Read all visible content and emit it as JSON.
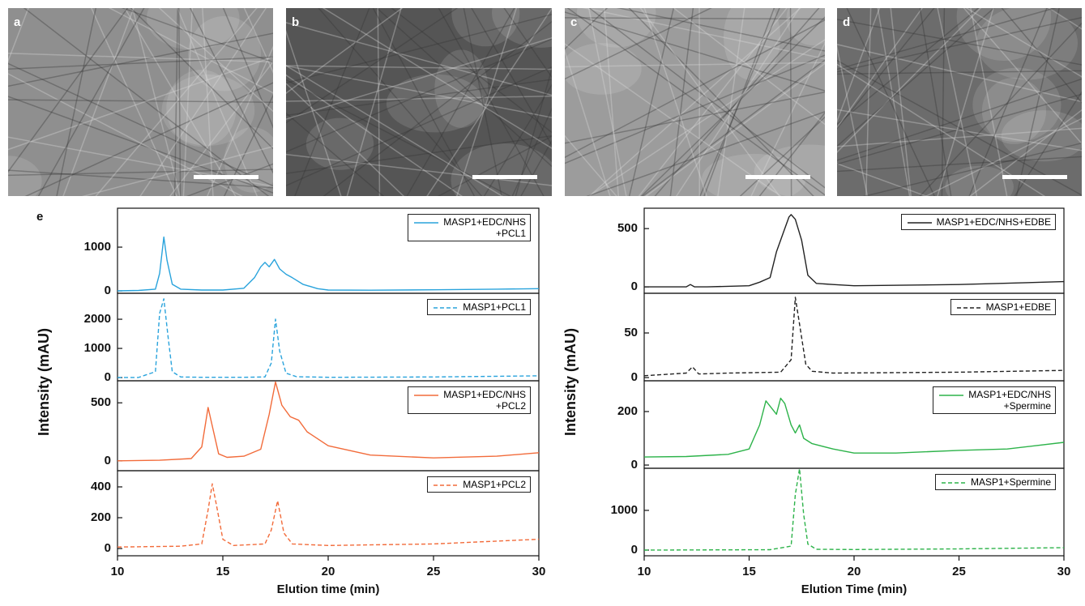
{
  "images": [
    {
      "label": "a"
    },
    {
      "label": "b"
    },
    {
      "label": "c"
    },
    {
      "label": "d"
    }
  ],
  "panel_label": "e",
  "chart_data": [
    {
      "type": "line",
      "ylabel": "Intensity (mAU)",
      "xlim": [
        10,
        30
      ],
      "ylim": [
        -55,
        1890
      ],
      "yticks": [
        0,
        1000
      ],
      "legend": "upper right",
      "series": [
        {
          "name": "MASP1+EDC/NHS\n+PCL1",
          "color": "#29a3dc",
          "dashed": false,
          "x": [
            10,
            11,
            11.8,
            12.0,
            12.2,
            12.35,
            12.6,
            13,
            14,
            15,
            16,
            16.5,
            16.8,
            17.0,
            17.2,
            17.45,
            17.7,
            18,
            18.3,
            18.8,
            19.5,
            20,
            22,
            25,
            28,
            30
          ],
          "values": [
            0,
            10,
            40,
            400,
            1230,
            700,
            150,
            40,
            20,
            20,
            60,
            300,
            550,
            650,
            550,
            720,
            500,
            380,
            300,
            150,
            50,
            20,
            15,
            25,
            40,
            50
          ]
        }
      ]
    },
    {
      "type": "line",
      "xlim": [
        10,
        30
      ],
      "ylim": [
        -110,
        2890
      ],
      "yticks": [
        0,
        1000,
        2000
      ],
      "legend": "upper right",
      "series": [
        {
          "name": "MASP1+PCL1",
          "color": "#29a3dc",
          "dashed": true,
          "x": [
            10,
            11,
            11.8,
            12.0,
            12.2,
            12.4,
            12.6,
            13,
            14,
            16,
            17,
            17.3,
            17.5,
            17.7,
            18,
            18.5,
            20,
            25,
            30
          ],
          "values": [
            0,
            5,
            200,
            2200,
            2700,
            1400,
            200,
            20,
            10,
            10,
            20,
            500,
            2000,
            900,
            150,
            30,
            10,
            20,
            60
          ]
        }
      ]
    },
    {
      "type": "line",
      "xlim": [
        10,
        30
      ],
      "ylim": [
        -85,
        690
      ],
      "yticks": [
        0,
        500
      ],
      "legend": "upper right",
      "series": [
        {
          "name": "MASP1+EDC/NHS\n+PCL2",
          "color": "#f26b3a",
          "dashed": false,
          "x": [
            10,
            12,
            13.5,
            14.0,
            14.3,
            14.5,
            14.8,
            15.2,
            16,
            16.8,
            17.2,
            17.5,
            17.8,
            18.2,
            18.6,
            19,
            20,
            22,
            25,
            28,
            30
          ],
          "values": [
            0,
            5,
            20,
            120,
            460,
            300,
            60,
            30,
            40,
            100,
            400,
            680,
            480,
            380,
            350,
            250,
            130,
            50,
            25,
            40,
            70
          ]
        }
      ]
    },
    {
      "type": "line",
      "xlabel": "Elution time (min)",
      "xlim": [
        10,
        30
      ],
      "xticks": [
        10,
        15,
        20,
        25,
        30
      ],
      "ylim": [
        -47,
        505
      ],
      "yticks": [
        0,
        200,
        400
      ],
      "legend": "upper right",
      "series": [
        {
          "name": "MASP1+PCL2",
          "color": "#f26b3a",
          "dashed": true,
          "x": [
            10,
            13,
            14,
            14.3,
            14.5,
            14.7,
            15,
            15.5,
            17,
            17.3,
            17.6,
            17.9,
            18.3,
            20,
            25,
            30
          ],
          "values": [
            10,
            15,
            30,
            250,
            420,
            280,
            60,
            20,
            30,
            120,
            310,
            100,
            30,
            20,
            30,
            60
          ]
        }
      ]
    },
    {
      "type": "line",
      "ylabel": "Intensity (mAU)",
      "xlim": [
        10,
        30
      ],
      "ylim": [
        -55,
        675
      ],
      "yticks": [
        0,
        500
      ],
      "legend": "upper right",
      "series": [
        {
          "name": "MASP1+EDC/NHS+EDBE",
          "color": "#222222",
          "dashed": false,
          "x": [
            10,
            12,
            12.2,
            12.4,
            13,
            15,
            15.5,
            16,
            16.3,
            16.6,
            16.9,
            17.0,
            17.2,
            17.5,
            17.8,
            18.2,
            19,
            20,
            25,
            30
          ],
          "values": [
            0,
            0,
            20,
            0,
            0,
            10,
            40,
            80,
            300,
            450,
            600,
            620,
            580,
            400,
            100,
            30,
            20,
            10,
            20,
            45
          ]
        }
      ]
    },
    {
      "type": "line",
      "xlim": [
        10,
        30
      ],
      "ylim": [
        -3.6,
        94.5
      ],
      "yticks": [
        0,
        50
      ],
      "legend": "upper right",
      "series": [
        {
          "name": "MASP1+EDBE",
          "color": "#222222",
          "dashed": true,
          "x": [
            10,
            12,
            12.3,
            12.6,
            14,
            16.5,
            17.0,
            17.2,
            17.4,
            17.7,
            18,
            19,
            25,
            30
          ],
          "values": [
            2,
            5,
            12,
            4,
            5,
            6,
            20,
            90,
            60,
            15,
            7,
            5,
            6,
            8
          ]
        }
      ]
    },
    {
      "type": "line",
      "xlim": [
        10,
        30
      ],
      "ylim": [
        -12,
        315
      ],
      "yticks": [
        0,
        200
      ],
      "legend": "upper right",
      "series": [
        {
          "name": "MASP1+EDC/NHS\n+Spermine",
          "color": "#2db34a",
          "dashed": false,
          "x": [
            10,
            12,
            14,
            15,
            15.5,
            15.8,
            16.0,
            16.3,
            16.5,
            16.7,
            17.0,
            17.2,
            17.4,
            17.6,
            18,
            19,
            20,
            22,
            25,
            27.3,
            30
          ],
          "values": [
            30,
            32,
            40,
            60,
            150,
            240,
            220,
            190,
            250,
            230,
            150,
            120,
            150,
            100,
            80,
            60,
            45,
            45,
            55,
            60,
            85
          ]
        }
      ]
    },
    {
      "type": "line",
      "xlabel": "Elution Time (min)",
      "xlim": [
        10,
        30
      ],
      "xticks": [
        10,
        15,
        20,
        25,
        30
      ],
      "ylim": [
        -143,
        2060
      ],
      "yticks": [
        0,
        1000
      ],
      "legend": "upper right",
      "series": [
        {
          "name": "MASP1+Spermine",
          "color": "#2db34a",
          "dashed": true,
          "x": [
            10,
            16,
            17.0,
            17.2,
            17.4,
            17.6,
            17.8,
            18.2,
            20,
            25,
            30
          ],
          "values": [
            0,
            10,
            100,
            1400,
            2050,
            900,
            150,
            20,
            15,
            30,
            60
          ]
        }
      ]
    }
  ]
}
